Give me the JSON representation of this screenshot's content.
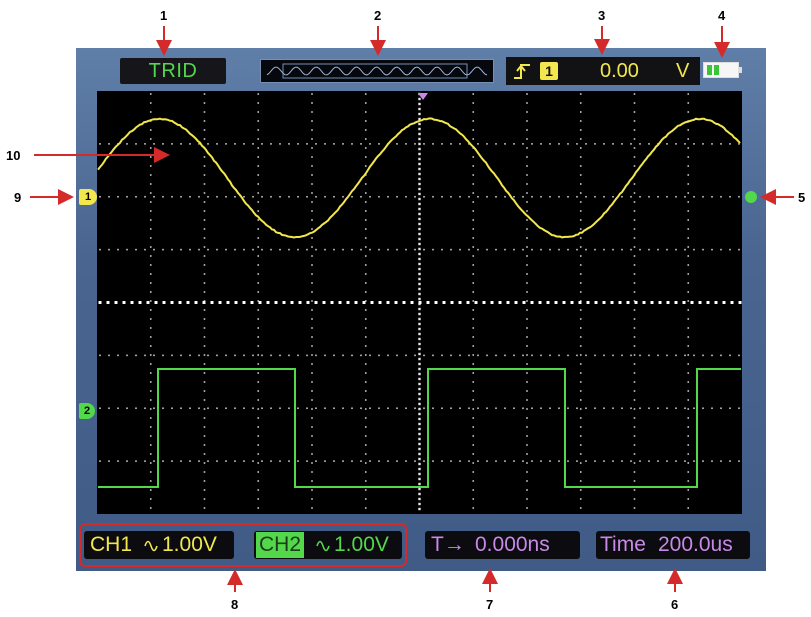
{
  "callouts": [
    "1",
    "2",
    "3",
    "4",
    "5",
    "6",
    "7",
    "8",
    "9",
    "10"
  ],
  "top_bar": {
    "mode": "TRID",
    "trigger": {
      "slope_icon": "rising-edge-icon",
      "source": "1",
      "level": "0.00",
      "unit": "V"
    },
    "battery_icon": "battery-icon"
  },
  "markers": {
    "ch1": "1",
    "ch2": "2"
  },
  "bottom_bar": {
    "ch1": {
      "label": "CH1",
      "coupling_icon": "ac-coupling-icon",
      "scale": "1.00V"
    },
    "ch2": {
      "label": "CH2",
      "coupling_icon": "ac-coupling-icon",
      "scale": "1.00V"
    },
    "trigger_offset": {
      "prefix": "T→",
      "value": "0.000ns"
    },
    "timebase": {
      "label": "Time",
      "value": "200.0us"
    }
  },
  "colors": {
    "ch1": "#f2e74d",
    "ch2": "#52d84a",
    "callout_arrow": "#d42a2a",
    "status_purple": "#c889e8",
    "screen_bg": "#000000",
    "bezel": "#4a6690"
  }
}
